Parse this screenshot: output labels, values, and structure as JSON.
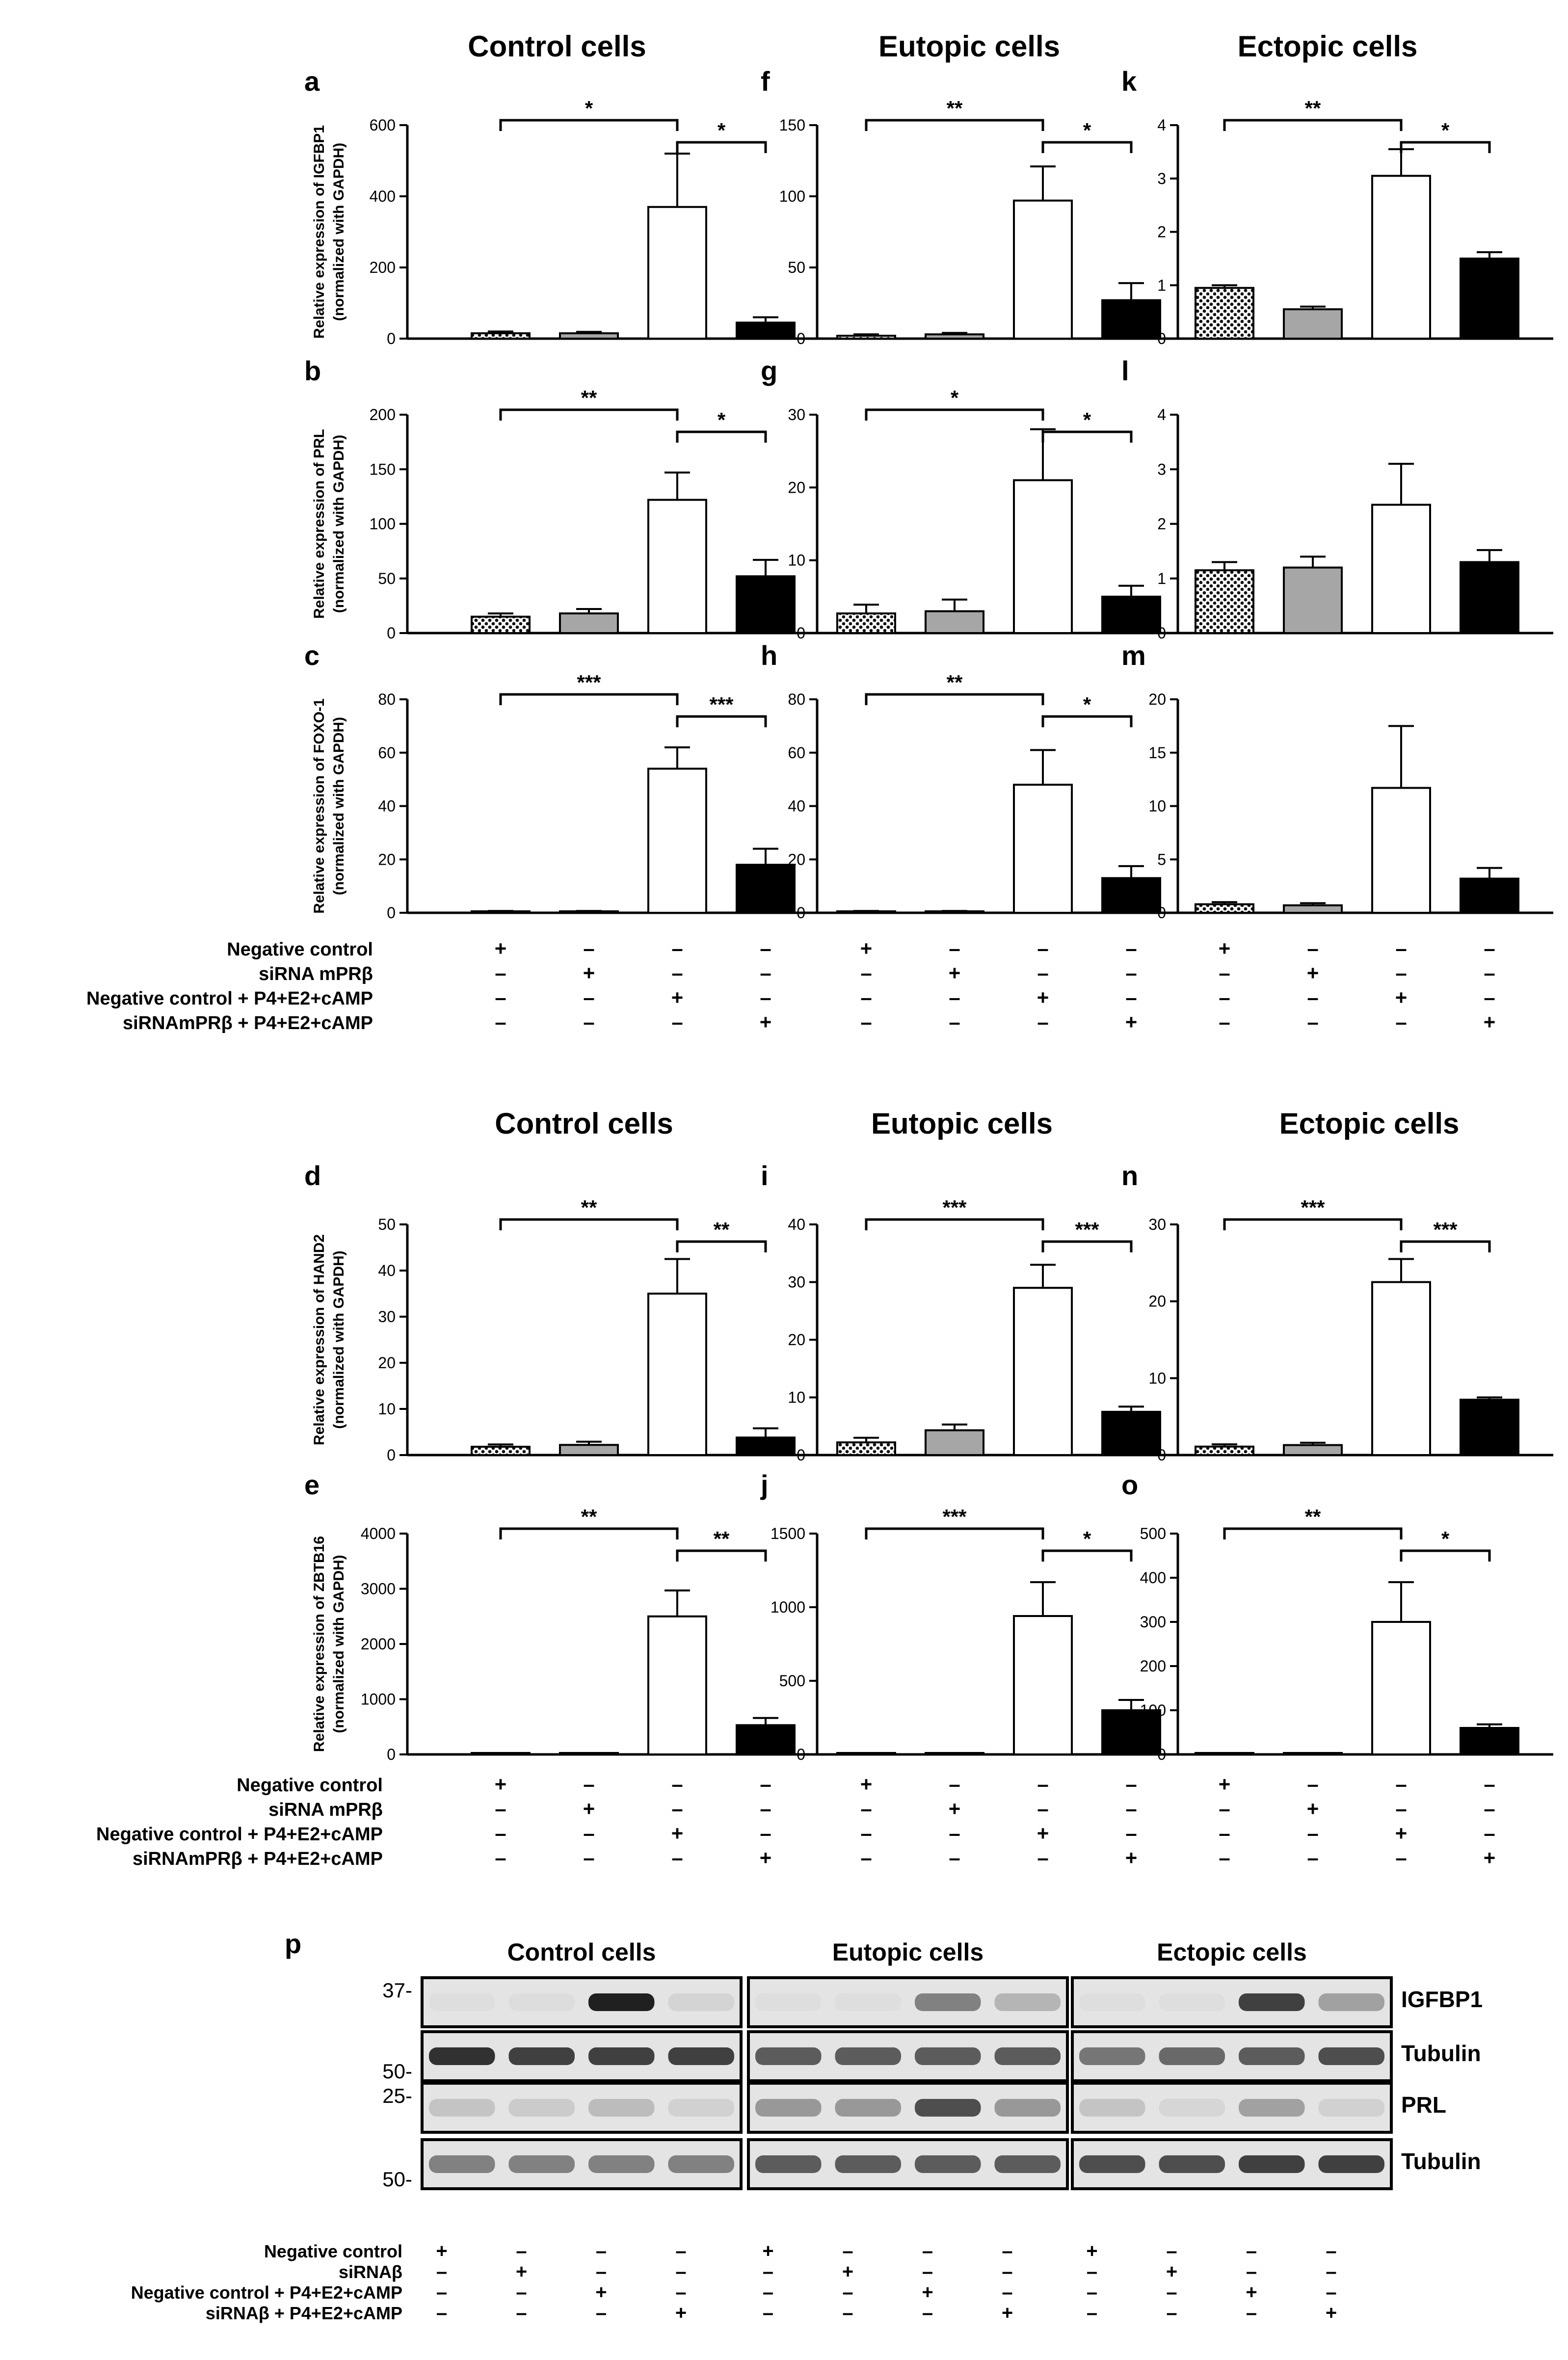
{
  "columns": [
    "Control cells",
    "Eutopic cells",
    "Ectopic cells"
  ],
  "conditions": [
    {
      "label": "Negative control",
      "signs": [
        "+",
        "–",
        "–",
        "–"
      ]
    },
    {
      "label": "siRNA mPRβ",
      "signs": [
        "–",
        "+",
        "–",
        "–"
      ]
    },
    {
      "label": "Negative control + P4+E2+cAMP",
      "signs": [
        "–",
        "–",
        "+",
        "–"
      ]
    },
    {
      "label": "siRNAmPRβ + P4+E2+cAMP",
      "signs": [
        "–",
        "–",
        "–",
        "+"
      ]
    }
  ],
  "chart_data": [
    {
      "panel": "a",
      "type": "bar",
      "gene": "IGFBP1",
      "ylabel": [
        "Relative expression of IGFBP1",
        "(normalized with GAPDH)"
      ],
      "ylim": [
        0,
        600
      ],
      "ticks": [
        0,
        200,
        400,
        600
      ],
      "values": [
        15,
        15,
        370,
        45
      ],
      "errors": [
        5,
        4,
        150,
        15
      ],
      "sig": [
        {
          "from": 0,
          "to": 2,
          "label": "*"
        },
        {
          "from": 2,
          "to": 3,
          "label": "*"
        }
      ]
    },
    {
      "panel": "f",
      "type": "bar",
      "gene": "IGFBP1",
      "ylabel": [],
      "ylim": [
        0,
        150
      ],
      "ticks": [
        0,
        50,
        100,
        150
      ],
      "values": [
        2,
        3,
        97,
        27
      ],
      "errors": [
        1,
        1,
        24,
        12
      ],
      "sig": [
        {
          "from": 0,
          "to": 2,
          "label": "**"
        },
        {
          "from": 2,
          "to": 3,
          "label": "*"
        }
      ]
    },
    {
      "panel": "k",
      "type": "bar",
      "gene": "IGFBP1",
      "ylabel": [],
      "ylim": [
        0,
        4
      ],
      "ticks": [
        0,
        1,
        2,
        3,
        4
      ],
      "values": [
        0.95,
        0.55,
        3.05,
        1.5
      ],
      "errors": [
        0.05,
        0.05,
        0.5,
        0.12
      ],
      "sig": [
        {
          "from": 0,
          "to": 2,
          "label": "**"
        },
        {
          "from": 2,
          "to": 3,
          "label": "*"
        }
      ]
    },
    {
      "panel": "b",
      "type": "bar",
      "gene": "PRL",
      "ylabel": [
        "Relative expression of PRL",
        "(normalized with GAPDH)"
      ],
      "ylim": [
        0,
        200
      ],
      "ticks": [
        0,
        50,
        100,
        150,
        200
      ],
      "values": [
        15,
        18,
        122,
        52
      ],
      "errors": [
        3,
        4,
        25,
        15
      ],
      "sig": [
        {
          "from": 0,
          "to": 2,
          "label": "**"
        },
        {
          "from": 2,
          "to": 3,
          "label": "*"
        }
      ]
    },
    {
      "panel": "g",
      "type": "bar",
      "gene": "PRL",
      "ylabel": [],
      "ylim": [
        0,
        30
      ],
      "ticks": [
        0,
        10,
        20,
        30
      ],
      "values": [
        2.7,
        3,
        21,
        5
      ],
      "errors": [
        1.2,
        1.6,
        7,
        1.5
      ],
      "sig": [
        {
          "from": 0,
          "to": 2,
          "label": "*"
        },
        {
          "from": 2,
          "to": 3,
          "label": "*"
        }
      ]
    },
    {
      "panel": "l",
      "type": "bar",
      "gene": "PRL",
      "ylabel": [],
      "ylim": [
        0,
        4
      ],
      "ticks": [
        0,
        1,
        2,
        3,
        4
      ],
      "values": [
        1.15,
        1.2,
        2.35,
        1.3
      ],
      "errors": [
        0.15,
        0.2,
        0.75,
        0.22
      ],
      "sig": []
    },
    {
      "panel": "c",
      "type": "bar",
      "gene": "FOXO-1",
      "ylabel": [
        "Relative expression of FOXO-1",
        "(normalized with GAPDH)"
      ],
      "ylim": [
        0,
        80
      ],
      "ticks": [
        0,
        20,
        40,
        60,
        80
      ],
      "values": [
        0.5,
        0.5,
        54,
        18
      ],
      "errors": [
        0.2,
        0.2,
        8,
        6
      ],
      "sig": [
        {
          "from": 0,
          "to": 2,
          "label": "***"
        },
        {
          "from": 2,
          "to": 3,
          "label": "***"
        }
      ]
    },
    {
      "panel": "h",
      "type": "bar",
      "gene": "FOXO-1",
      "ylabel": [],
      "ylim": [
        0,
        80
      ],
      "ticks": [
        0,
        20,
        40,
        60,
        80
      ],
      "values": [
        0.5,
        0.5,
        48,
        13
      ],
      "errors": [
        0.2,
        0.2,
        13,
        4.5
      ],
      "sig": [
        {
          "from": 0,
          "to": 2,
          "label": "**"
        },
        {
          "from": 2,
          "to": 3,
          "label": "*"
        }
      ]
    },
    {
      "panel": "m",
      "type": "bar",
      "gene": "FOXO-1",
      "ylabel": [],
      "ylim": [
        0,
        20
      ],
      "ticks": [
        0,
        5,
        10,
        15,
        20
      ],
      "values": [
        0.8,
        0.7,
        11.7,
        3.2
      ],
      "errors": [
        0.2,
        0.2,
        5.8,
        1
      ],
      "sig": []
    },
    {
      "panel": "d",
      "type": "bar",
      "gene": "HAND2",
      "ylabel": [
        "Relative expression of HAND2",
        "(normalized with GAPDH)"
      ],
      "ylim": [
        0,
        50
      ],
      "ticks": [
        0,
        10,
        20,
        30,
        40,
        50
      ],
      "values": [
        1.8,
        2.2,
        35,
        3.8
      ],
      "errors": [
        0.5,
        0.7,
        7.5,
        2
      ],
      "sig": [
        {
          "from": 0,
          "to": 2,
          "label": "**"
        },
        {
          "from": 2,
          "to": 3,
          "label": "**"
        }
      ]
    },
    {
      "panel": "i",
      "type": "bar",
      "gene": "HAND2",
      "ylabel": [],
      "ylim": [
        0,
        40
      ],
      "ticks": [
        0,
        10,
        20,
        30,
        40
      ],
      "values": [
        2.2,
        4.3,
        29,
        7.5
      ],
      "errors": [
        0.8,
        1,
        4,
        0.9
      ],
      "sig": [
        {
          "from": 0,
          "to": 2,
          "label": "***"
        },
        {
          "from": 2,
          "to": 3,
          "label": "***"
        }
      ]
    },
    {
      "panel": "n",
      "type": "bar",
      "gene": "HAND2",
      "ylabel": [],
      "ylim": [
        0,
        30
      ],
      "ticks": [
        0,
        10,
        20,
        30
      ],
      "values": [
        1.1,
        1.3,
        22.5,
        7.2
      ],
      "errors": [
        0.3,
        0.3,
        3,
        0.3
      ],
      "sig": [
        {
          "from": 0,
          "to": 2,
          "label": "***"
        },
        {
          "from": 2,
          "to": 3,
          "label": "***"
        }
      ]
    },
    {
      "panel": "e",
      "type": "bar",
      "gene": "ZBTB16",
      "ylabel": [
        "Relative expression of ZBTB16",
        "(normalized with GAPDH)"
      ],
      "ylim": [
        0,
        4000
      ],
      "ticks": [
        0,
        1000,
        2000,
        3000,
        4000
      ],
      "values": [
        5,
        5,
        2500,
        530
      ],
      "errors": [
        2,
        2,
        470,
        130
      ],
      "sig": [
        {
          "from": 0,
          "to": 2,
          "label": "**"
        },
        {
          "from": 2,
          "to": 3,
          "label": "**"
        }
      ]
    },
    {
      "panel": "j",
      "type": "bar",
      "gene": "ZBTB16",
      "ylabel": [],
      "ylim": [
        0,
        1500
      ],
      "ticks": [
        0,
        500,
        1000,
        1500
      ],
      "values": [
        3,
        3,
        940,
        300
      ],
      "errors": [
        1,
        1,
        230,
        70
      ],
      "sig": [
        {
          "from": 0,
          "to": 2,
          "label": "***"
        },
        {
          "from": 2,
          "to": 3,
          "label": "*"
        }
      ]
    },
    {
      "panel": "o",
      "type": "bar",
      "gene": "ZBTB16",
      "ylabel": [],
      "ylim": [
        0,
        500
      ],
      "ticks": [
        0,
        100,
        200,
        300,
        400,
        500
      ],
      "values": [
        2,
        2,
        300,
        60
      ],
      "errors": [
        1,
        1,
        90,
        8
      ],
      "sig": [
        {
          "from": 0,
          "to": 2,
          "label": "**"
        },
        {
          "from": 2,
          "to": 3,
          "label": "*"
        }
      ]
    }
  ],
  "western": {
    "panel": "p",
    "columns": [
      "Control cells",
      "Eutopic cells",
      "Ectopic cells"
    ],
    "rows": [
      {
        "label": "IGFBP1",
        "marker": "37-",
        "intensity": [
          [
            0.02,
            0.03,
            0.95,
            0.12
          ],
          [
            0.02,
            0.02,
            0.6,
            0.35
          ],
          [
            0.02,
            0.02,
            0.85,
            0.45
          ]
        ]
      },
      {
        "label": "Tubulin",
        "marker": "50-",
        "intensity": [
          [
            0.9,
            0.85,
            0.85,
            0.85
          ],
          [
            0.75,
            0.75,
            0.75,
            0.75
          ],
          [
            0.65,
            0.7,
            0.75,
            0.8
          ]
        ]
      },
      {
        "label": "PRL",
        "marker": "25-",
        "intensity": [
          [
            0.25,
            0.2,
            0.3,
            0.15
          ],
          [
            0.5,
            0.5,
            0.8,
            0.5
          ],
          [
            0.25,
            0.1,
            0.45,
            0.15
          ]
        ]
      },
      {
        "label": "Tubulin",
        "marker": "50-",
        "intensity": [
          [
            0.6,
            0.6,
            0.6,
            0.6
          ],
          [
            0.75,
            0.75,
            0.75,
            0.75
          ],
          [
            0.8,
            0.8,
            0.85,
            0.85
          ]
        ]
      }
    ],
    "conditions": [
      {
        "label": "Negative control",
        "signs": [
          "+",
          "–",
          "–",
          "–"
        ]
      },
      {
        "label": "siRNAβ",
        "signs": [
          "–",
          "+",
          "–",
          "–"
        ]
      },
      {
        "label": "Negative control + P4+E2+cAMP",
        "signs": [
          "–",
          "–",
          "+",
          "–"
        ]
      },
      {
        "label": "siRNAβ + P4+E2+cAMP",
        "signs": [
          "–",
          "–",
          "–",
          "+"
        ]
      }
    ]
  }
}
